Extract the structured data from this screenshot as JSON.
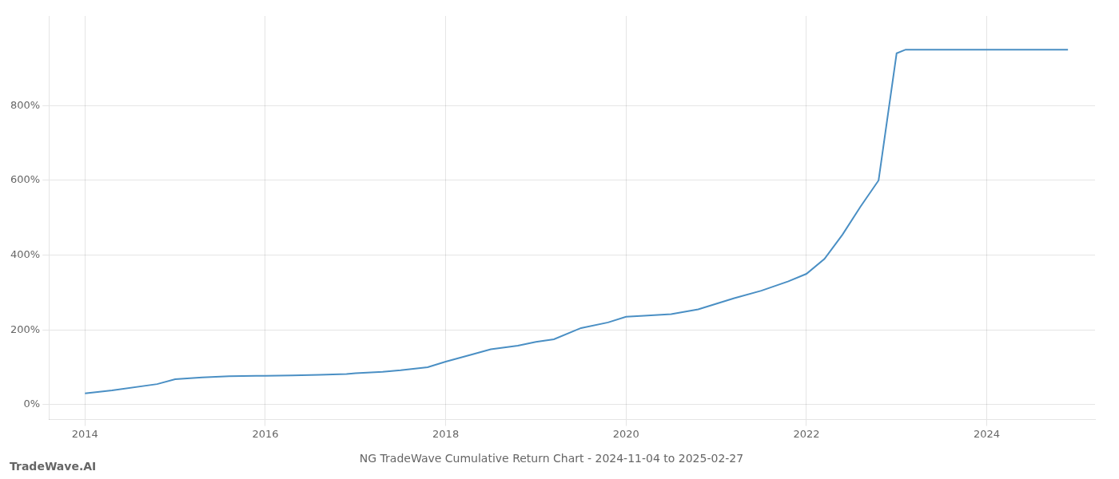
{
  "chart_data": {
    "type": "line",
    "title": "NG TradeWave Cumulative Return Chart - 2024-11-04 to 2025-02-27",
    "annotations": [
      "TradeWave.AI"
    ],
    "x": [
      2014.0,
      2014.3,
      2014.8,
      2015.0,
      2015.3,
      2015.6,
      2015.9,
      2016.0,
      2016.3,
      2016.6,
      2016.9,
      2017.0,
      2017.3,
      2017.5,
      2017.8,
      2018.0,
      2018.3,
      2018.5,
      2018.8,
      2019.0,
      2019.2,
      2019.5,
      2019.8,
      2020.0,
      2020.2,
      2020.5,
      2020.8,
      2021.0,
      2021.2,
      2021.5,
      2021.8,
      2022.0,
      2022.2,
      2022.4,
      2022.6,
      2022.8,
      2023.0,
      2023.1,
      2023.2,
      2023.5,
      2023.8,
      2024.0,
      2024.3,
      2024.6,
      2024.9
    ],
    "values": [
      30,
      38,
      55,
      68,
      73,
      76,
      77,
      77,
      78,
      80,
      82,
      84,
      88,
      92,
      100,
      115,
      135,
      148,
      158,
      168,
      175,
      205,
      220,
      235,
      238,
      242,
      255,
      270,
      285,
      305,
      330,
      350,
      390,
      455,
      530,
      600,
      940,
      950,
      950,
      950,
      950,
      950,
      950,
      950,
      950
    ],
    "color": "#4a8fc4",
    "xlim": [
      2013.6,
      2025.2
    ],
    "xticks": [
      2014,
      2016,
      2018,
      2020,
      2022,
      2024
    ],
    "ylim": [
      -40,
      1040
    ],
    "yticks": [
      {
        "value": 0,
        "label": "0%"
      },
      {
        "value": 200,
        "label": "200%"
      },
      {
        "value": 400,
        "label": "400%"
      },
      {
        "value": 600,
        "label": "600%"
      },
      {
        "value": 800,
        "label": "800%"
      }
    ],
    "grid": true
  }
}
